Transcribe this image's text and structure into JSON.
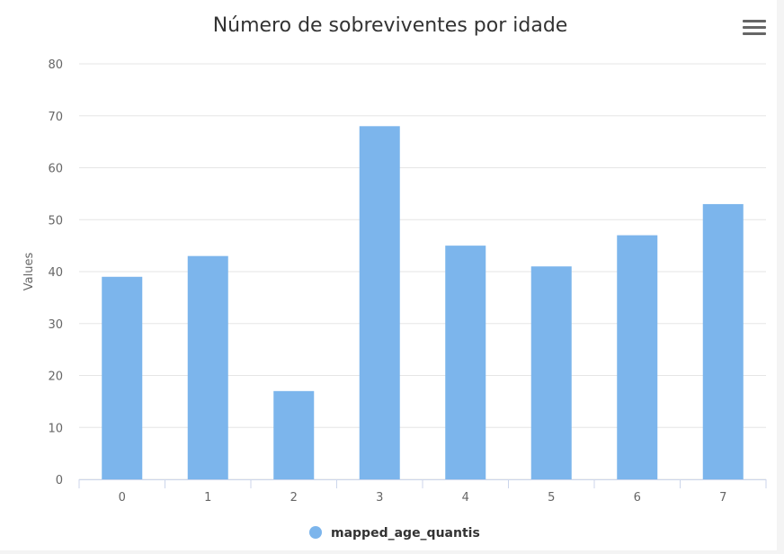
{
  "chart_data": {
    "type": "bar",
    "title": "Número de sobreviventes por idade",
    "ylabel": "Values",
    "xlabel": "",
    "categories": [
      "0",
      "1",
      "2",
      "3",
      "4",
      "5",
      "6",
      "7"
    ],
    "series": [
      {
        "name": "mapped_age_quantis",
        "values": [
          39,
          43,
          17,
          68,
          45,
          41,
          47,
          53
        ],
        "color": "#7cb5ec"
      }
    ],
    "ylim": [
      0,
      80
    ],
    "yticks": [
      0,
      10,
      20,
      30,
      40,
      50,
      60,
      70,
      80
    ],
    "grid": true,
    "legend_position": "bottom-center"
  },
  "menu": {
    "icon": "hamburger-menu-icon"
  }
}
